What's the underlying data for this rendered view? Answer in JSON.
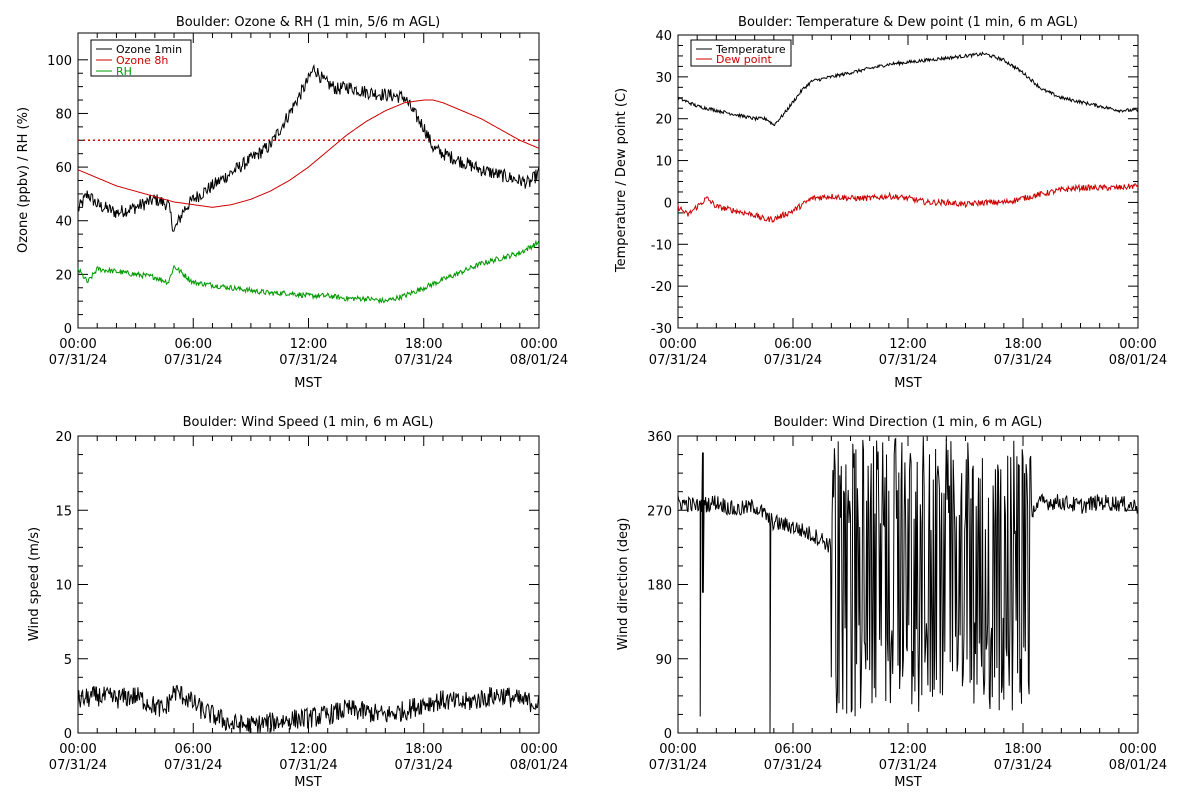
{
  "chart_data": [
    {
      "id": "ozone-rh",
      "type": "line",
      "title": "Boulder: Ozone & RH (1 min, 5/6 m AGL)",
      "xlabel": "MST",
      "ylabel": "Ozone (ppbv) / RH (%)",
      "x_tick_times": [
        "00:00",
        "06:00",
        "12:00",
        "18:00",
        "00:00"
      ],
      "x_tick_dates": [
        "07/31/24",
        "07/31/24",
        "07/31/24",
        "07/31/24",
        "08/01/24"
      ],
      "xlim_hours": [
        0,
        24
      ],
      "ylim": [
        0,
        110
      ],
      "y_ticks": [
        0,
        20,
        40,
        60,
        80,
        100
      ],
      "grid": false,
      "legend_position": "top-left",
      "reference_line": {
        "y": 70,
        "color": "#cc0000",
        "style": "dotted"
      },
      "series": [
        {
          "name": "Ozone 1min",
          "color": "#000000",
          "noise": 2.5,
          "x": [
            0,
            0.5,
            1,
            2,
            3,
            4,
            4.7,
            5,
            5.5,
            6,
            7,
            8,
            9,
            10,
            11,
            11.8,
            12.3,
            12.8,
            13.5,
            14,
            15,
            16,
            17,
            17.5,
            18,
            18.5,
            19,
            20,
            21,
            22,
            23,
            23.5,
            24
          ],
          "y": [
            44,
            50,
            46,
            43,
            45,
            48,
            46,
            36,
            44,
            48,
            53,
            58,
            63,
            68,
            80,
            90,
            97,
            92,
            89,
            90,
            88,
            87,
            86,
            80,
            75,
            67,
            65,
            62,
            59,
            57,
            55,
            54,
            58
          ]
        },
        {
          "name": "Ozone 8h",
          "color": "#cc0000",
          "noise": 0,
          "x": [
            0,
            1,
            2,
            3,
            4,
            5,
            6,
            7,
            8,
            9,
            10,
            11,
            12,
            13,
            14,
            15,
            16,
            17,
            18,
            18.5,
            19,
            20,
            21,
            22,
            23,
            24
          ],
          "y": [
            59,
            56,
            53,
            51,
            49,
            47,
            46,
            45,
            46,
            48,
            51,
            55,
            60,
            66,
            72,
            77,
            81,
            84,
            85,
            85,
            84,
            81,
            78,
            74,
            70,
            67
          ]
        },
        {
          "name": "RH",
          "color": "#009900",
          "noise": 1.0,
          "x": [
            0,
            0.5,
            1,
            2,
            3,
            4,
            4.7,
            5,
            6,
            7,
            8,
            9,
            10,
            11,
            12,
            13,
            14,
            15,
            16,
            17,
            18,
            19,
            20,
            21,
            22,
            23,
            24
          ],
          "y": [
            22,
            17,
            22,
            21,
            20,
            19,
            17,
            23,
            17,
            16,
            15,
            14,
            13,
            13,
            12,
            12,
            11,
            11,
            10,
            12,
            15,
            18,
            21,
            24,
            26,
            28,
            32
          ]
        }
      ]
    },
    {
      "id": "temp-dew",
      "type": "line",
      "title": "Boulder: Temperature & Dew point (1 min, 6 m AGL)",
      "xlabel": "MST",
      "ylabel": "Temperature / Dew point (C)",
      "x_tick_times": [
        "00:00",
        "06:00",
        "12:00",
        "18:00",
        "00:00"
      ],
      "x_tick_dates": [
        "07/31/24",
        "07/31/24",
        "07/31/24",
        "07/31/24",
        "08/01/24"
      ],
      "xlim_hours": [
        0,
        24
      ],
      "ylim": [
        -30,
        40
      ],
      "y_ticks": [
        -30,
        -20,
        -10,
        0,
        10,
        20,
        30,
        40
      ],
      "grid": false,
      "legend_position": "top-left",
      "series": [
        {
          "name": "Temperature",
          "color": "#000000",
          "noise": 0.4,
          "x": [
            0,
            1,
            2,
            3,
            4,
            4.6,
            5,
            5.5,
            6,
            6.5,
            7,
            8,
            9,
            10,
            11,
            12,
            13,
            14,
            15,
            16,
            17,
            18,
            19,
            20,
            21,
            22,
            23,
            24
          ],
          "y": [
            25,
            23,
            22,
            21,
            20,
            20,
            18.5,
            21,
            24,
            27,
            29,
            30,
            31,
            32,
            33,
            33.5,
            34,
            34.5,
            35,
            35.5,
            34,
            31,
            27,
            25,
            24,
            23,
            22,
            22
          ]
        },
        {
          "name": "Dew point",
          "color": "#cc0000",
          "noise": 0.7,
          "x": [
            0,
            0.5,
            1,
            1.5,
            2,
            3,
            4,
            4.5,
            5,
            5.5,
            6,
            7,
            8,
            9,
            10,
            11,
            12,
            13,
            14,
            15,
            16,
            17,
            18,
            19,
            20,
            21,
            22,
            23,
            24
          ],
          "y": [
            -1,
            -3,
            -1,
            1,
            -1,
            -2,
            -3,
            -4,
            -4,
            -3,
            -2,
            1,
            1.5,
            1,
            1,
            1.5,
            1,
            0,
            0,
            -0.5,
            0,
            0,
            1,
            2,
            3,
            3.5,
            3.5,
            3.5,
            4
          ]
        }
      ]
    },
    {
      "id": "wind-speed",
      "type": "line",
      "title": "Boulder: Wind Speed (1 min, 6 m AGL)",
      "xlabel": "MST",
      "ylabel": "Wind speed (m/s)",
      "x_tick_times": [
        "00:00",
        "06:00",
        "12:00",
        "18:00",
        "00:00"
      ],
      "x_tick_dates": [
        "07/31/24",
        "07/31/24",
        "07/31/24",
        "07/31/24",
        "08/01/24"
      ],
      "xlim_hours": [
        0,
        24
      ],
      "ylim": [
        0,
        20
      ],
      "y_ticks": [
        0,
        5,
        10,
        15,
        20
      ],
      "grid": false,
      "series": [
        {
          "name": "",
          "color": "#000000",
          "noise": 0.7,
          "clip_min": 0,
          "x": [
            0,
            1,
            2,
            3,
            4,
            4.5,
            5,
            5.5,
            6,
            6.5,
            7,
            8,
            9,
            10,
            11,
            12,
            13,
            14,
            15,
            16,
            17,
            18,
            19,
            20,
            21,
            22,
            23,
            24
          ],
          "y": [
            2.2,
            2.5,
            2.3,
            2.5,
            1.8,
            1.5,
            2.8,
            2.5,
            2.0,
            1.5,
            1.2,
            0.6,
            0.5,
            0.7,
            0.9,
            1.0,
            1.2,
            1.6,
            1.4,
            1.2,
            1.5,
            2.0,
            2.2,
            2.0,
            2.3,
            2.6,
            2.2,
            2.0
          ]
        }
      ]
    },
    {
      "id": "wind-dir",
      "type": "line",
      "title": "Boulder: Wind Direction (1 min, 6 m AGL)",
      "xlabel": "MST",
      "ylabel": "Wind direction (deg)",
      "x_tick_times": [
        "00:00",
        "06:00",
        "12:00",
        "18:00",
        "00:00"
      ],
      "x_tick_dates": [
        "07/31/24",
        "07/31/24",
        "07/31/24",
        "07/31/24",
        "08/01/24"
      ],
      "xlim_hours": [
        0,
        24
      ],
      "ylim": [
        0,
        360
      ],
      "y_ticks": [
        0,
        90,
        180,
        270,
        360
      ],
      "grid": false,
      "series": [
        {
          "name": "",
          "color": "#000000",
          "noise": 10,
          "x": [
            0,
            1,
            2,
            3,
            4,
            5,
            6,
            7,
            7.5,
            8,
            18.4,
            19,
            20,
            21,
            22,
            23,
            24
          ],
          "y": [
            280,
            275,
            280,
            270,
            275,
            255,
            250,
            240,
            235,
            225,
            270,
            280,
            280,
            275,
            280,
            278,
            275
          ],
          "chaotic_range_hours": [
            8.0,
            18.4
          ],
          "spikes": [
            {
              "x": 1.15,
              "from": 280,
              "to": 20
            },
            {
              "x": 1.3,
              "from": 340,
              "to": 170
            },
            {
              "x": 4.8,
              "from": 250,
              "to": 0
            }
          ]
        }
      ]
    }
  ]
}
